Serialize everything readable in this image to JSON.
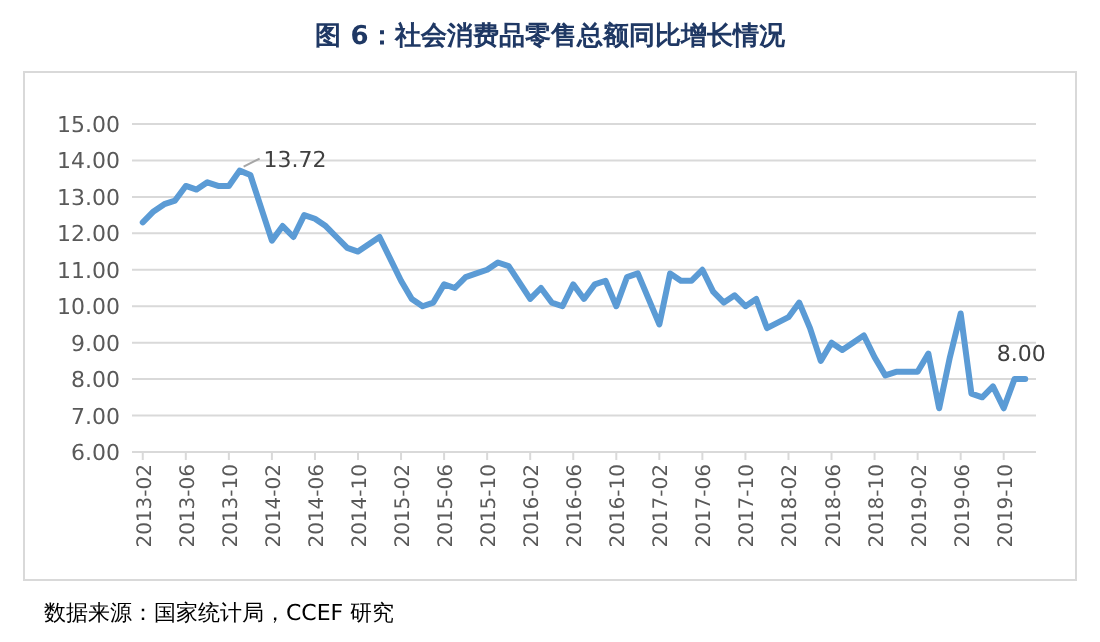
{
  "chart_data": {
    "type": "line",
    "title": "图 6：社会消费品零售总额同比增长情况",
    "x": [
      "2013-02",
      "2013-03",
      "2013-04",
      "2013-05",
      "2013-06",
      "2013-07",
      "2013-08",
      "2013-09",
      "2013-10",
      "2013-11",
      "2013-12",
      "2014-02",
      "2014-03",
      "2014-04",
      "2014-05",
      "2014-06",
      "2014-07",
      "2014-08",
      "2014-09",
      "2014-10",
      "2014-11",
      "2014-12",
      "2015-02",
      "2015-03",
      "2015-04",
      "2015-05",
      "2015-06",
      "2015-07",
      "2015-08",
      "2015-09",
      "2015-10",
      "2015-11",
      "2015-12",
      "2016-02",
      "2016-03",
      "2016-04",
      "2016-05",
      "2016-06",
      "2016-07",
      "2016-08",
      "2016-09",
      "2016-10",
      "2016-11",
      "2016-12",
      "2017-02",
      "2017-03",
      "2017-04",
      "2017-05",
      "2017-06",
      "2017-07",
      "2017-08",
      "2017-09",
      "2017-10",
      "2017-11",
      "2017-12",
      "2018-02",
      "2018-03",
      "2018-04",
      "2018-05",
      "2018-06",
      "2018-07",
      "2018-08",
      "2018-09",
      "2018-10",
      "2018-11",
      "2018-12",
      "2019-02",
      "2019-03",
      "2019-04",
      "2019-05",
      "2019-06",
      "2019-07",
      "2019-08",
      "2019-09",
      "2019-10",
      "2019-11",
      "2019-12"
    ],
    "series": [
      {
        "color": "#5b9bd5",
        "values": [
          12.3,
          12.6,
          12.8,
          12.9,
          13.3,
          13.2,
          13.4,
          13.3,
          13.3,
          13.72,
          13.6,
          11.8,
          12.2,
          11.9,
          12.5,
          12.4,
          12.2,
          11.9,
          11.6,
          11.5,
          11.7,
          11.9,
          10.7,
          10.2,
          10.0,
          10.1,
          10.6,
          10.5,
          10.8,
          10.9,
          11.0,
          11.2,
          11.1,
          10.2,
          10.5,
          10.1,
          10.0,
          10.6,
          10.2,
          10.6,
          10.7,
          10.0,
          10.8,
          10.9,
          9.5,
          10.9,
          10.7,
          10.7,
          11.0,
          10.4,
          10.1,
          10.3,
          10.0,
          10.2,
          9.4,
          9.7,
          10.1,
          9.4,
          8.5,
          9.0,
          8.8,
          9.0,
          9.2,
          8.6,
          8.1,
          8.2,
          8.2,
          8.7,
          7.2,
          8.6,
          9.8,
          7.6,
          7.5,
          7.8,
          7.2,
          8.0,
          8.0
        ]
      }
    ],
    "xlim": [
      "2013-01",
      "2020-01"
    ],
    "xticks": [
      "2013-02",
      "2013-06",
      "2013-10",
      "2014-02",
      "2014-06",
      "2014-10",
      "2015-02",
      "2015-06",
      "2015-10",
      "2016-02",
      "2016-06",
      "2016-10",
      "2017-02",
      "2017-06",
      "2017-10",
      "2018-02",
      "2018-06",
      "2018-10",
      "2019-02",
      "2019-06",
      "2019-10"
    ],
    "ylim": [
      6,
      15
    ],
    "yticks": [
      {
        "value": 6,
        "label": "6.00"
      },
      {
        "value": 7,
        "label": "7.00"
      },
      {
        "value": 8,
        "label": "8.00"
      },
      {
        "value": 9,
        "label": "9.00"
      },
      {
        "value": 10,
        "label": "10.00"
      },
      {
        "value": 11,
        "label": "11.00"
      },
      {
        "value": 12,
        "label": "12.00"
      },
      {
        "value": 13,
        "label": "13.00"
      },
      {
        "value": 14,
        "label": "14.00"
      },
      {
        "value": 15,
        "label": "15.00"
      }
    ],
    "grid": "y",
    "marker": "none",
    "line_style": "solid",
    "annotations": [
      {
        "text": "13.72",
        "x": "2013-11",
        "y": 13.72
      },
      {
        "text": "8.00",
        "x": "2019-12",
        "y": 8.0
      },
      "数据来源：国家统计局，CCEF 研究"
    ]
  }
}
